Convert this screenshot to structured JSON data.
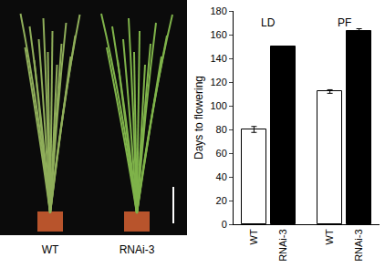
{
  "photo": {
    "labels": [
      "WT",
      "RNAi-3"
    ]
  },
  "chart_data": {
    "type": "bar",
    "categories": [
      "LD",
      "PF"
    ],
    "series": [
      {
        "name": "WT",
        "color": "#ffffff",
        "values": [
          80,
          112
        ],
        "errors": [
          2.5,
          1.5
        ]
      },
      {
        "name": "RNAi-3",
        "color": "#000000",
        "values": [
          150,
          163
        ],
        "errors": [
          0,
          2
        ]
      }
    ],
    "y_label": "Days to flowering",
    "ylim": [
      0,
      180
    ],
    "yticks": [
      0,
      20,
      40,
      60,
      80,
      100,
      120,
      140,
      160,
      180
    ],
    "grid": false
  }
}
